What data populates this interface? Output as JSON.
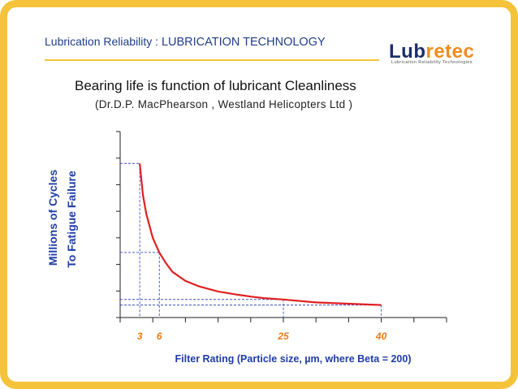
{
  "slide": {
    "header_prefix": "Lubrication Reliability :",
    "header_topic": "LUBRICATION TECHNOLOGY",
    "logo": {
      "word_a": "Lub",
      "word_b": "retec",
      "tagline": "Lubrication Reliability Technologies"
    },
    "title": "Bearing life is function of lubricant Cleanliness",
    "subtitle": "(Dr.D.P. MacPhearson , Westland Helicopters Ltd )"
  },
  "colors": {
    "frame": "#f5c33a",
    "header_text": "#1f3d8a",
    "axis_label": "#1f3da8",
    "curve": "#e02020",
    "guide": "#3a4fc4",
    "tick_label": "#f07a10"
  },
  "chart_data": {
    "type": "line",
    "xlabel": "Filter Rating (Particle size, µm, where Beta = 200)",
    "ylabel_line1": "Millions of Cycles",
    "ylabel_line2": "To Fatigue Failure",
    "xlim": [
      0,
      50
    ],
    "ylim": [
      0,
      7
    ],
    "x_tick_step": 5,
    "y_tick_step": 1,
    "x_ticks_labeled": [
      3,
      6,
      25,
      40
    ],
    "grid": false,
    "series": [
      {
        "x": [
          3,
          3.5,
          4,
          5,
          6,
          7,
          8,
          10,
          12,
          15,
          18,
          20,
          22,
          25,
          30,
          35,
          40
        ],
        "y": [
          5.8,
          4.6,
          3.9,
          3.0,
          2.45,
          2.05,
          1.72,
          1.38,
          1.18,
          0.98,
          0.86,
          0.79,
          0.73,
          0.68,
          0.57,
          0.52,
          0.47
        ]
      }
    ],
    "guide_lines": [
      {
        "x": 3,
        "y": 5.8
      },
      {
        "x": 6,
        "y": 2.45
      },
      {
        "x": 25,
        "y": 0.68
      },
      {
        "x": 40,
        "y": 0.47
      }
    ]
  }
}
